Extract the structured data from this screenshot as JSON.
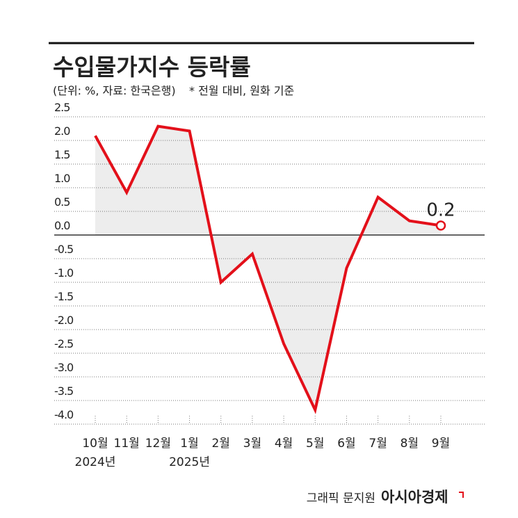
{
  "chart_data": {
    "type": "line",
    "title": "수입물가지수 등락률",
    "subtitle": "(단위: %, 자료: 한국은행)",
    "note": "* 전월 대비, 원화 기준",
    "source": "그래픽 문지원",
    "publisher": "아시아경제",
    "categories": [
      "10월",
      "11월",
      "12월",
      "1월",
      "2월",
      "3월",
      "4월",
      "5월",
      "6월",
      "7월",
      "8월",
      "9월"
    ],
    "year_labels": [
      "2024년",
      null,
      null,
      "2025년",
      null,
      null,
      null,
      null,
      null,
      null,
      null,
      null
    ],
    "series": [
      {
        "color": "#e3101a",
        "values": [
          2.1,
          0.9,
          2.3,
          2.2,
          -1.0,
          -0.4,
          -2.3,
          -3.7,
          -0.7,
          0.8,
          0.3,
          0.2
        ]
      }
    ],
    "ylim": [
      -4,
      2.5
    ],
    "yticks": [
      2.5,
      {
        "value": 2,
        "label": "2.0"
      },
      1.5,
      {
        "value": 1,
        "label": "1.0"
      },
      0.5,
      {
        "value": 0,
        "label": "0.0"
      },
      -0.5,
      {
        "value": -1,
        "label": "-1.0"
      },
      -1.5,
      {
        "value": -2,
        "label": "-2.0"
      },
      -2.5,
      {
        "value": -3,
        "label": "-3.0"
      },
      -3.5,
      {
        "value": -4,
        "label": "-4.0"
      }
    ],
    "grid": true
  }
}
